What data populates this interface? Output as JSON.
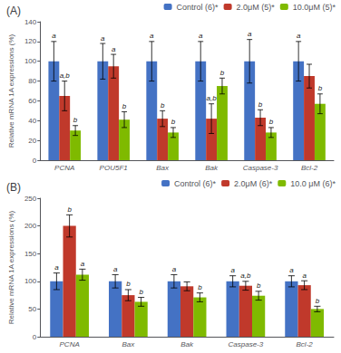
{
  "chart_data": [
    {
      "type": "bar",
      "title": "(A)",
      "categories": [
        "PCNA",
        "POU5F1",
        "Bax",
        "Bak",
        "Caspase-3",
        "Bcl-2"
      ],
      "series": [
        {
          "name": "Control (6)*",
          "color": "#4472c4",
          "values": [
            100,
            100,
            100,
            100,
            100,
            100
          ],
          "errors": [
            20,
            18,
            20,
            20,
            22,
            20
          ],
          "annotations": [
            "a",
            "a",
            "a",
            "a",
            "a",
            "a"
          ]
        },
        {
          "name": "2.0μM (5)*",
          "color": "#c0392b",
          "values": [
            65,
            95,
            42,
            42,
            43,
            85
          ],
          "errors": [
            15,
            12,
            8,
            15,
            8,
            12
          ],
          "annotations": [
            "a,b",
            "a",
            "b",
            "a,b",
            "b",
            null
          ]
        },
        {
          "name": "10.0μM (5)*",
          "color": "#7fba00",
          "values": [
            30,
            41,
            28,
            75,
            28,
            57
          ],
          "errors": [
            5,
            8,
            5,
            8,
            5,
            10
          ],
          "annotations": [
            "b",
            "b",
            "b",
            "b",
            "b",
            "b"
          ]
        }
      ],
      "ylabel": "Relative mRNA 1A expressions (%)",
      "ylim": [
        0,
        140
      ],
      "yticks": [
        0,
        20,
        40,
        60,
        80,
        100,
        120,
        140
      ],
      "grid": false,
      "legend": "upper right"
    },
    {
      "type": "bar",
      "title": "(B)",
      "categories": [
        "PCNA",
        "Bax",
        "Bak",
        "Caspase-3",
        "Bcl-2"
      ],
      "series": [
        {
          "name": "Control (6)*",
          "color": "#4472c4",
          "values": [
            100,
            100,
            100,
            100,
            100
          ],
          "errors": [
            15,
            12,
            12,
            10,
            10
          ],
          "annotations": [
            "a",
            "a",
            "a",
            "a",
            "a"
          ]
        },
        {
          "name": "2.0μM (6)*",
          "color": "#c0392b",
          "values": [
            200,
            75,
            91,
            92,
            93
          ],
          "errors": [
            20,
            10,
            8,
            8,
            8
          ],
          "annotations": [
            "b",
            "b",
            null,
            "a,b",
            "a"
          ]
        },
        {
          "name": "10.0 μM (6)*",
          "color": "#7fba00",
          "values": [
            112,
            63,
            71,
            74,
            50
          ],
          "errors": [
            10,
            8,
            8,
            8,
            5
          ],
          "annotations": [
            "a",
            "b",
            "b",
            "b",
            "b"
          ]
        }
      ],
      "ylabel": "Relative mRNA 1A expressions (%)",
      "ylim": [
        0,
        250
      ],
      "yticks": [
        0,
        50,
        100,
        150,
        200,
        250
      ],
      "grid": false,
      "legend": "upper right"
    }
  ]
}
